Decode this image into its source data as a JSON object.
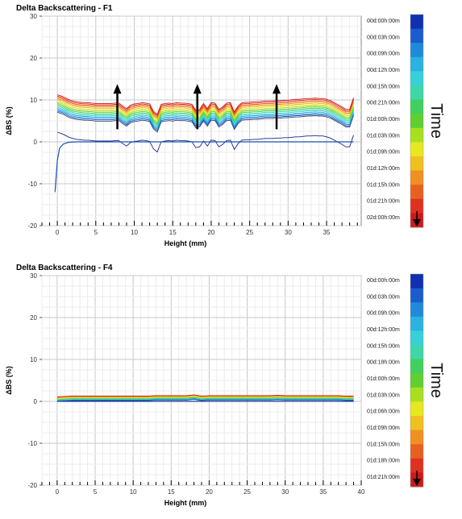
{
  "chart_data": [
    {
      "type": "line",
      "title": "Delta Backscattering - F1",
      "xlabel": "Height (mm)",
      "ylabel": "ΔBS (%)",
      "xlim": [
        -2,
        39.5
      ],
      "ylim": [
        -20,
        30
      ],
      "x_ticks": [
        0,
        5,
        10,
        15,
        20,
        25,
        30,
        35
      ],
      "y_ticks": [
        -20,
        -10,
        0,
        10,
        20,
        30
      ],
      "grid": true,
      "legend_position": "right",
      "legend_title": "Time",
      "legend_entries": [
        "00d:00h:00m",
        "00d:03h:00m",
        "00d:09h:00m",
        "00d:12h:00m",
        "00d:15h:00m",
        "00d:21h:00m",
        "01d:00h:00m",
        "01d:03h:00m",
        "01d:09h:00m",
        "01d:12h:00m",
        "01d:15h:00m",
        "01d:21h:00m",
        "02d:00h:00m"
      ],
      "colorbar": [
        "#1030b0",
        "#1a5ccc",
        "#1f8ad8",
        "#2ab2e0",
        "#38d0d8",
        "#3ed8a8",
        "#40d060",
        "#60d030",
        "#a8e020",
        "#e8e820",
        "#f0c020",
        "#f09020",
        "#e86020",
        "#e03020",
        "#d01818"
      ],
      "arrows_x": [
        7.8,
        18.2,
        28.5
      ],
      "series": [
        {
          "offset": 0.0,
          "color": "#1a2a8a"
        },
        {
          "offset": 0.55,
          "color": "#3a4a6a"
        },
        {
          "offset": 0.85,
          "color": "#1a5ccc"
        },
        {
          "offset": 1.15,
          "color": "#1f8ad8"
        },
        {
          "offset": 1.45,
          "color": "#2ab2e0"
        },
        {
          "offset": 1.75,
          "color": "#38d0d8"
        },
        {
          "offset": 2.05,
          "color": "#3ed8a8"
        },
        {
          "offset": 2.35,
          "color": "#40d060"
        },
        {
          "offset": 2.65,
          "color": "#60d030"
        },
        {
          "offset": 2.95,
          "color": "#a8e020"
        },
        {
          "offset": 3.25,
          "color": "#e8e820"
        },
        {
          "offset": 3.55,
          "color": "#f0c020"
        },
        {
          "offset": 3.85,
          "color": "#f09020"
        },
        {
          "offset": 4.15,
          "color": "#e86020"
        },
        {
          "offset": 4.45,
          "color": "#e03020"
        },
        {
          "offset": 4.75,
          "color": "#d01818"
        }
      ],
      "x": [
        0,
        0.5,
        1,
        1.5,
        2,
        2.5,
        3,
        3.5,
        4,
        4.5,
        5,
        5.5,
        6,
        6.5,
        7,
        7.5,
        8,
        8.5,
        9,
        9.5,
        10,
        10.5,
        11,
        11.5,
        12,
        12.5,
        13,
        13.5,
        14,
        14.5,
        15,
        15.5,
        16,
        16.5,
        17,
        17.5,
        18,
        18.5,
        19,
        19.5,
        20,
        20.5,
        21,
        21.5,
        22,
        22.5,
        23,
        23.5,
        24,
        24.5,
        25,
        25.5,
        26,
        26.5,
        27,
        27.5,
        28,
        28.5,
        29,
        29.5,
        30,
        30.5,
        31,
        31.5,
        32,
        32.5,
        33,
        33.5,
        34,
        34.5,
        35,
        35.5,
        36,
        36.5,
        37,
        37.5,
        38,
        38.5
      ],
      "base": [
        6.5,
        6.2,
        5.8,
        5.3,
        5.0,
        4.8,
        4.7,
        4.6,
        4.6,
        4.5,
        4.4,
        4.4,
        4.4,
        4.4,
        4.4,
        4.5,
        4.5,
        3.8,
        3.2,
        4.0,
        4.3,
        4.4,
        4.6,
        4.5,
        4.3,
        2.5,
        1.8,
        4.2,
        4.4,
        4.5,
        4.4,
        4.6,
        4.5,
        4.5,
        4.4,
        4.2,
        2.8,
        3.0,
        4.4,
        3.2,
        4.6,
        4.5,
        3.0,
        3.6,
        4.5,
        4.6,
        2.4,
        3.8,
        4.6,
        4.7,
        4.7,
        4.8,
        4.8,
        4.9,
        5.0,
        5.0,
        5.0,
        5.1,
        5.1,
        5.2,
        5.2,
        5.3,
        5.4,
        5.4,
        5.5,
        5.6,
        5.6,
        5.7,
        5.6,
        5.6,
        5.4,
        5.1,
        4.6,
        4.1,
        3.6,
        3.0,
        3.0,
        5.8
      ],
      "baseline_series": {
        "x": [
          -0.3,
          0,
          0.3,
          0.8,
          1.5,
          2.5,
          38.5
        ],
        "y": [
          -12,
          -4.5,
          -1.5,
          -0.5,
          -0.1,
          0,
          0
        ],
        "color": "#1a4fb0"
      }
    },
    {
      "type": "line",
      "title": "Delta Backscattering - F4",
      "xlabel": "Height (mm)",
      "ylabel": "ΔBS (%)",
      "xlim": [
        -2,
        40
      ],
      "ylim": [
        -20,
        30
      ],
      "x_ticks": [
        0,
        5,
        10,
        15,
        20,
        25,
        30,
        35,
        40
      ],
      "y_ticks": [
        -20,
        -10,
        0,
        10,
        20,
        30
      ],
      "grid": true,
      "legend_position": "right",
      "legend_title": "Time",
      "legend_entries": [
        "00d:00h:00m",
        "00d:03h:00m",
        "00d:09h:00m",
        "00d:12h:00m",
        "00d:15h:00m",
        "00d:18h:00m",
        "01d:00h:00m",
        "01d:03h:00m",
        "01d:06h:00m",
        "01d:09h:00m",
        "01d:15h:00m",
        "01d:18h:00m",
        "01d:21h:00m"
      ],
      "colorbar": [
        "#1030b0",
        "#1a5ccc",
        "#1f8ad8",
        "#2ab2e0",
        "#38d0d8",
        "#3ed8a8",
        "#40d060",
        "#60d030",
        "#a8e020",
        "#e8e820",
        "#f0c020",
        "#f09020",
        "#e86020",
        "#e03020",
        "#d01818"
      ],
      "series": [
        {
          "offset": 0.0,
          "color": "#1a3aa0"
        },
        {
          "offset": 0.15,
          "color": "#1f8ad8"
        },
        {
          "offset": 0.3,
          "color": "#38d0d8"
        },
        {
          "offset": 0.45,
          "color": "#40d060"
        },
        {
          "offset": 0.6,
          "color": "#a8e020"
        },
        {
          "offset": 0.75,
          "color": "#e8e820"
        },
        {
          "offset": 0.9,
          "color": "#f09020"
        },
        {
          "offset": 1.05,
          "color": "#d01818"
        }
      ],
      "x": [
        0,
        1,
        2,
        3,
        4,
        5,
        6,
        7,
        8,
        9,
        10,
        11,
        12,
        13,
        14,
        15,
        16,
        17,
        18,
        19,
        20,
        21,
        22,
        23,
        24,
        25,
        26,
        27,
        28,
        29,
        30,
        31,
        32,
        33,
        34,
        35,
        36,
        37,
        38,
        39
      ],
      "base": [
        0.0,
        0.1,
        0.2,
        0.2,
        0.2,
        0.2,
        0.2,
        0.2,
        0.2,
        0.2,
        0.2,
        0.2,
        0.2,
        0.3,
        0.3,
        0.3,
        0.3,
        0.3,
        0.5,
        0.2,
        0.3,
        0.3,
        0.3,
        0.3,
        0.3,
        0.3,
        0.3,
        0.3,
        0.3,
        0.4,
        0.3,
        0.3,
        0.3,
        0.3,
        0.3,
        0.3,
        0.3,
        0.3,
        0.2,
        0.2
      ]
    }
  ]
}
